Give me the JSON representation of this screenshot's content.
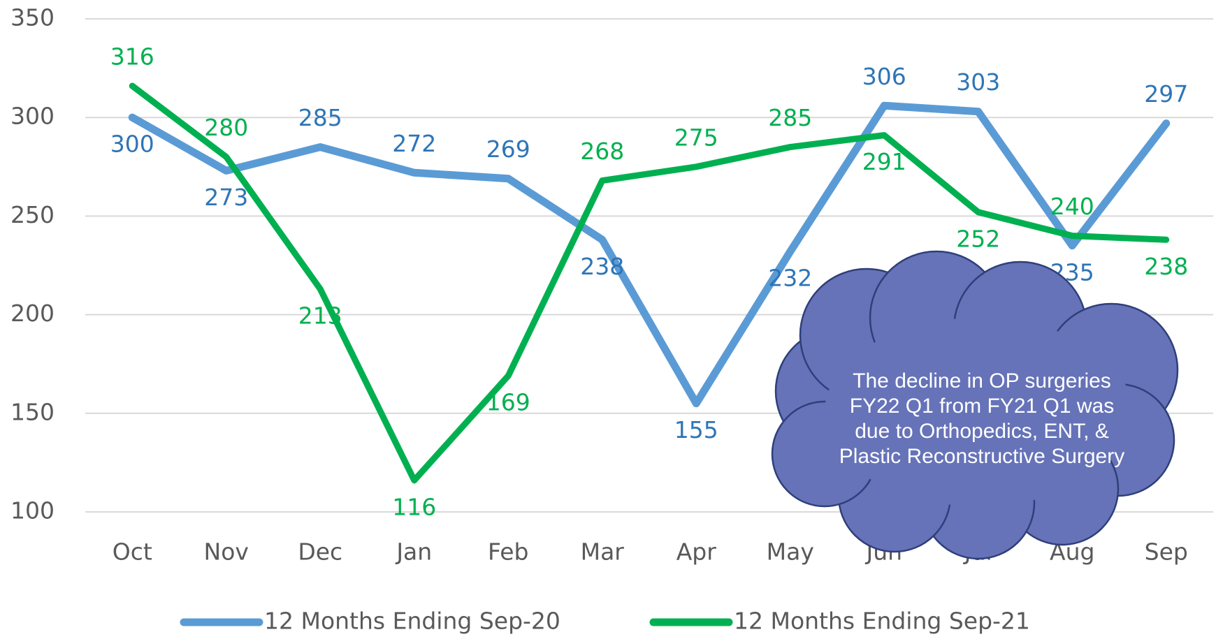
{
  "chart_data": {
    "type": "line",
    "categories": [
      "Oct",
      "Nov",
      "Dec",
      "Jan",
      "Feb",
      "Mar",
      "Apr",
      "May",
      "Jun",
      "Jul",
      "Aug",
      "Sep"
    ],
    "series": [
      {
        "name": "12 Months Ending Sep-20",
        "color": "#5b9bd5",
        "label_color": "#2e75b6",
        "values": [
          300,
          273,
          285,
          272,
          269,
          238,
          155,
          232,
          306,
          303,
          235,
          297
        ]
      },
      {
        "name": "12 Months Ending Sep-21",
        "color": "#00b050",
        "label_color": "#00b050",
        "values": [
          316,
          280,
          213,
          116,
          169,
          268,
          275,
          285,
          291,
          252,
          240,
          238
        ]
      }
    ],
    "ylim": [
      100,
      350
    ],
    "yticks": [
      100,
      150,
      200,
      250,
      300,
      350
    ],
    "grid": true,
    "legend": "bottom",
    "annotation": "The decline in OP surgeries FY22 Q1 from FY21 Q1 was due to Orthopedics, ENT, & Plastic Reconstructive Surgery"
  }
}
